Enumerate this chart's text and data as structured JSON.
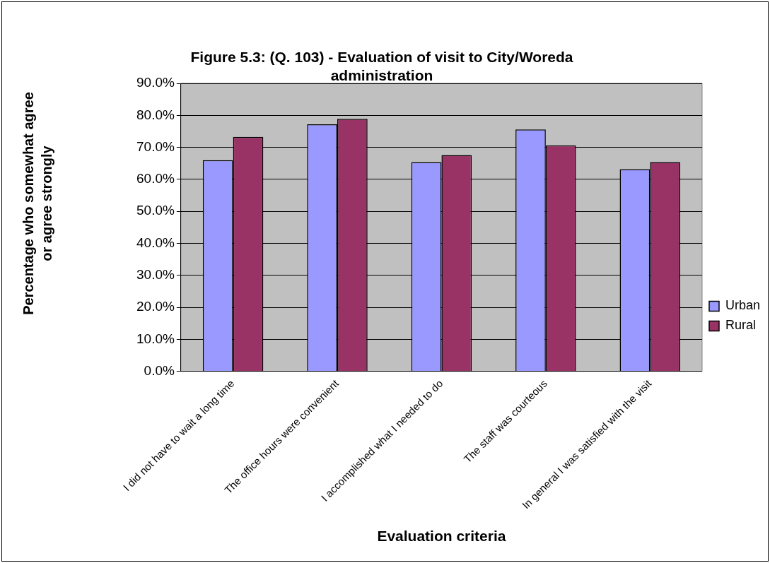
{
  "chart_data": {
    "type": "bar",
    "title": "Figure 5.3: (Q. 103) - Evaluation of visit to City/Woreda administration",
    "xlabel": "Evaluation criteria",
    "ylabel": "Percentage who somewhat agree or agree strongly",
    "categories": [
      "I did not have to wait a long time",
      "The office hours were convenient",
      "I accomplished what I needed to do",
      "The staff was courteous",
      "In general I was satisfied with the visit"
    ],
    "series": [
      {
        "name": "Urban",
        "color": "#9999ff",
        "values": [
          66.0,
          77.2,
          65.4,
          75.6,
          63.2
        ]
      },
      {
        "name": "Rural",
        "color": "#993366",
        "values": [
          73.3,
          78.9,
          67.6,
          70.6,
          65.4
        ]
      }
    ],
    "ylim": [
      0,
      90
    ],
    "yticks": [
      {
        "value": 0,
        "label": "0.0%"
      },
      {
        "value": 10,
        "label": "10.0%"
      },
      {
        "value": 20,
        "label": "20.0%"
      },
      {
        "value": 30,
        "label": "30.0%"
      },
      {
        "value": 40,
        "label": "40.0%"
      },
      {
        "value": 50,
        "label": "50.0%"
      },
      {
        "value": 60,
        "label": "60.0%"
      },
      {
        "value": 70,
        "label": "70.0%"
      },
      {
        "value": 80,
        "label": "80.0%"
      },
      {
        "value": 90,
        "label": "90.0%"
      }
    ],
    "grid": "y",
    "legend": "right"
  }
}
